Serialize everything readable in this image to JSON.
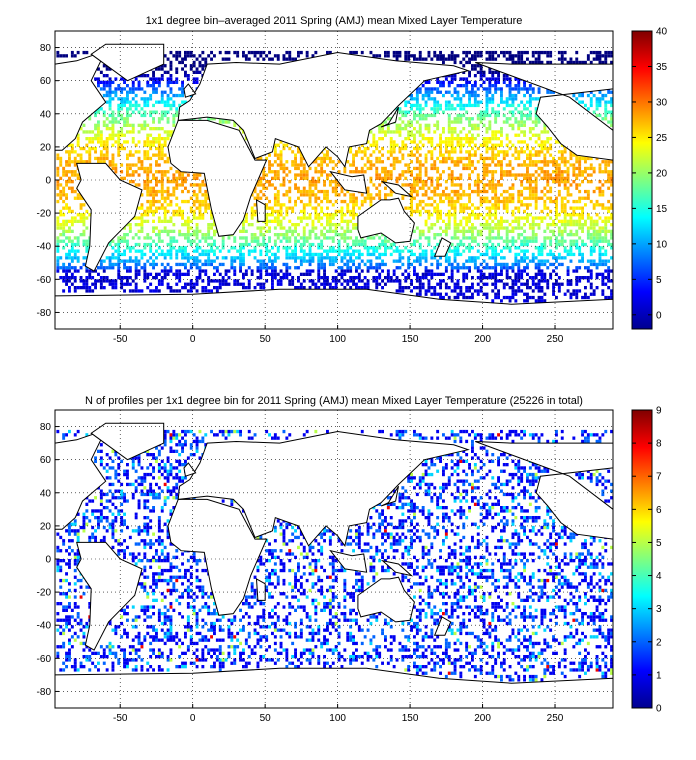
{
  "panels": [
    {
      "title": "1x1 degree bin–averaged 2011 Spring (AMJ) mean Mixed Layer Temperature",
      "x_ticks": [
        "-50",
        "0",
        "50",
        "100",
        "150",
        "200",
        "250"
      ],
      "x_tick_values": [
        -50,
        0,
        50,
        100,
        150,
        200,
        250
      ],
      "y_ticks": [
        "80",
        "60",
        "40",
        "20",
        "0",
        "-20",
        "-40",
        "-60",
        "-80"
      ],
      "y_tick_values": [
        80,
        60,
        40,
        20,
        0,
        -20,
        -40,
        -60,
        -80
      ],
      "xlim": [
        -95,
        290
      ],
      "ylim": [
        -90,
        90
      ],
      "colorbar": {
        "ticks": [
          "40",
          "35",
          "30",
          "25",
          "20",
          "15",
          "10",
          "5",
          "0"
        ],
        "tick_values": [
          40,
          35,
          30,
          25,
          20,
          15,
          10,
          5,
          0
        ],
        "range": [
          -2,
          40
        ],
        "colormap": "jet"
      }
    },
    {
      "title": "N of profiles per 1x1 degree bin for 2011 Spring (AMJ) mean Mixed Layer Temperature   (25226 in total)",
      "x_ticks": [
        "-50",
        "0",
        "50",
        "100",
        "150",
        "200",
        "250"
      ],
      "x_tick_values": [
        -50,
        0,
        50,
        100,
        150,
        200,
        250
      ],
      "y_ticks": [
        "80",
        "60",
        "40",
        "20",
        "0",
        "-20",
        "-40",
        "-60",
        "-80"
      ],
      "y_tick_values": [
        80,
        60,
        40,
        20,
        0,
        -20,
        -40,
        -60,
        -80
      ],
      "xlim": [
        -95,
        290
      ],
      "ylim": [
        -90,
        90
      ],
      "colorbar": {
        "ticks": [
          "9",
          "8",
          "7",
          "6",
          "5",
          "4",
          "3",
          "2",
          "1",
          "0"
        ],
        "tick_values": [
          9,
          8,
          7,
          6,
          5,
          4,
          3,
          2,
          1,
          0
        ],
        "range": [
          0,
          9
        ],
        "colormap": "jet"
      }
    }
  ]
}
